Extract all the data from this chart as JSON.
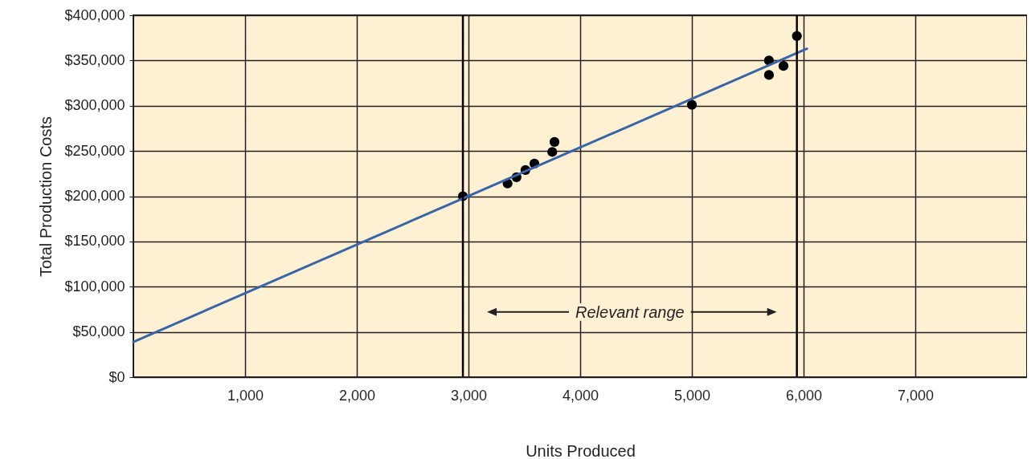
{
  "chart_data": {
    "type": "scatter",
    "xlabel": "Units Produced",
    "ylabel": "Total Production Costs",
    "xlim": [
      0,
      8000
    ],
    "xticks": [
      {
        "value": 1000,
        "label": "1,000"
      },
      {
        "value": 2000,
        "label": "2,000"
      },
      {
        "value": 3000,
        "label": "3,000"
      },
      {
        "value": 4000,
        "label": "4,000"
      },
      {
        "value": 5000,
        "label": "5,000"
      },
      {
        "value": 6000,
        "label": "6,000"
      },
      {
        "value": 7000,
        "label": "7,000"
      }
    ],
    "ylim": [
      0,
      400000
    ],
    "yticks": [
      {
        "value": 0,
        "label": "$0"
      },
      {
        "value": 50000,
        "label": "$50,000"
      },
      {
        "value": 100000,
        "label": "$100,000"
      },
      {
        "value": 150000,
        "label": "$150,000"
      },
      {
        "value": 200000,
        "label": "$200,000"
      },
      {
        "value": 250000,
        "label": "$250,000"
      },
      {
        "value": 300000,
        "label": "$300,000"
      },
      {
        "value": 350000,
        "label": "$350,000"
      },
      {
        "value": 400000,
        "label": "$400,000"
      }
    ],
    "grid": true,
    "series": [
      {
        "color": "#000000",
        "marker": "circle",
        "x": [
          2950,
          3350,
          3430,
          3510,
          3590,
          3750,
          3770,
          5000,
          5690,
          5690,
          5820,
          5940
        ],
        "values": [
          200000,
          214000,
          221000,
          229000,
          236000,
          249000,
          260000,
          301000,
          350000,
          334000,
          344000,
          377000
        ]
      },
      {
        "type": "line",
        "color": "#3a64a8",
        "line_style": "solid",
        "x": [
          0,
          6030
        ],
        "values": [
          39000,
          363000
        ]
      }
    ],
    "ref_lines": [
      {
        "axis": "x",
        "value": 2950,
        "color": "#000000"
      },
      {
        "axis": "x",
        "value": 5940,
        "color": "#000000"
      }
    ],
    "annotations": [
      "Relevant range"
    ]
  }
}
